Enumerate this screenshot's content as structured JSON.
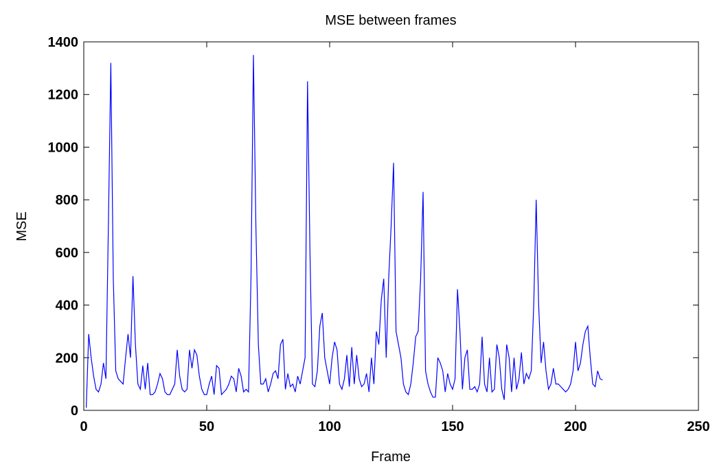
{
  "chart_data": {
    "type": "line",
    "title": "MSE between frames",
    "x_label": "Frame",
    "y_label": "MSE",
    "x": [
      1,
      2,
      3,
      4,
      5,
      6,
      7,
      8,
      9,
      10,
      11,
      12,
      13,
      14,
      15,
      16,
      17,
      18,
      19,
      20,
      21,
      22,
      23,
      24,
      25,
      26,
      27,
      28,
      29,
      30,
      31,
      32,
      33,
      34,
      35,
      36,
      37,
      38,
      39,
      40,
      41,
      42,
      43,
      44,
      45,
      46,
      47,
      48,
      49,
      50,
      51,
      52,
      53,
      54,
      55,
      56,
      57,
      58,
      59,
      60,
      61,
      62,
      63,
      64,
      65,
      66,
      67,
      68,
      69,
      70,
      71,
      72,
      73,
      74,
      75,
      76,
      77,
      78,
      79,
      80,
      81,
      82,
      83,
      84,
      85,
      86,
      87,
      88,
      89,
      90,
      91,
      92,
      93,
      94,
      95,
      96,
      97,
      98,
      99,
      100,
      101,
      102,
      103,
      104,
      105,
      106,
      107,
      108,
      109,
      110,
      111,
      112,
      113,
      114,
      115,
      116,
      117,
      118,
      119,
      120,
      121,
      122,
      123,
      124,
      125,
      126,
      127,
      128,
      129,
      130,
      131,
      132,
      133,
      134,
      135,
      136,
      137,
      138,
      139,
      140,
      141,
      142,
      143,
      144,
      145,
      146,
      147,
      148,
      149,
      150,
      151,
      152,
      153,
      154,
      155,
      156,
      157,
      158,
      159,
      160,
      161,
      162,
      163,
      164,
      165,
      166,
      167,
      168,
      169,
      170,
      171,
      172,
      173,
      174,
      175,
      176,
      177,
      178,
      179,
      180,
      181,
      182,
      183,
      184,
      185,
      186,
      187,
      188,
      189,
      190,
      191,
      192,
      193,
      194,
      195,
      196,
      197,
      198,
      199,
      200,
      201,
      202,
      203,
      204,
      205,
      206,
      207,
      208,
      209,
      210,
      211
    ],
    "series": [
      {
        "name": "MSE",
        "color": "#0000ff",
        "values": [
          10,
          290,
          200,
          130,
          80,
          70,
          100,
          180,
          120,
          700,
          1320,
          500,
          150,
          120,
          110,
          100,
          200,
          290,
          200,
          510,
          250,
          100,
          80,
          170,
          80,
          180,
          60,
          60,
          70,
          100,
          140,
          120,
          70,
          60,
          60,
          80,
          100,
          230,
          130,
          80,
          70,
          80,
          230,
          160,
          230,
          210,
          130,
          80,
          60,
          60,
          100,
          130,
          60,
          170,
          160,
          60,
          70,
          80,
          100,
          130,
          120,
          70,
          160,
          130,
          70,
          80,
          70,
          500,
          1350,
          700,
          250,
          100,
          100,
          120,
          70,
          100,
          140,
          150,
          120,
          250,
          270,
          80,
          140,
          90,
          100,
          70,
          130,
          100,
          150,
          200,
          1250,
          600,
          100,
          90,
          150,
          320,
          370,
          200,
          150,
          100,
          200,
          260,
          230,
          100,
          80,
          120,
          210,
          90,
          240,
          100,
          210,
          120,
          90,
          100,
          140,
          70,
          200,
          100,
          300,
          250,
          420,
          500,
          200,
          500,
          700,
          940,
          300,
          250,
          200,
          100,
          70,
          60,
          100,
          180,
          280,
          300,
          500,
          830,
          150,
          100,
          70,
          50,
          50,
          200,
          180,
          150,
          70,
          140,
          100,
          80,
          120,
          460,
          300,
          80,
          200,
          230,
          80,
          80,
          90,
          70,
          100,
          280,
          100,
          70,
          200,
          70,
          80,
          250,
          200,
          80,
          40,
          250,
          200,
          70,
          200,
          80,
          120,
          220,
          100,
          140,
          120,
          150,
          400,
          800,
          400,
          180,
          260,
          150,
          80,
          100,
          160,
          100,
          100,
          90,
          80,
          70,
          80,
          100,
          150,
          260,
          150,
          180,
          250,
          300,
          320,
          200,
          100,
          90,
          150,
          120,
          115
        ]
      }
    ],
    "xlim": [
      0,
      250
    ],
    "xticks": [
      0,
      50,
      100,
      150,
      200,
      250
    ],
    "ylim": [
      0,
      1400
    ],
    "yticks": [
      0,
      200,
      400,
      600,
      800,
      1000,
      1200,
      1400
    ]
  }
}
